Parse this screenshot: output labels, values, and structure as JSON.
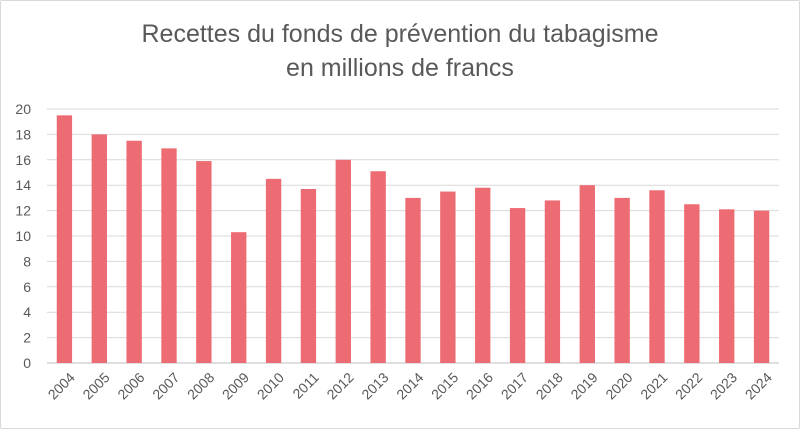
{
  "title_line1": "Recettes du fonds de prévention du tabagisme",
  "title_line2": "en millions de francs",
  "bar_color": "#ED6B72",
  "chart_data": {
    "type": "bar",
    "title": "Recettes du fonds de prévention du tabagisme en millions de francs",
    "categories": [
      "2004",
      "2005",
      "2006",
      "2007",
      "2008",
      "2009",
      "2010",
      "2011",
      "2012",
      "2013",
      "2014",
      "2015",
      "2016",
      "2017",
      "2018",
      "2019",
      "2020",
      "2021",
      "2022",
      "2023",
      "2024"
    ],
    "values": [
      19.5,
      18.0,
      17.5,
      16.9,
      15.9,
      10.3,
      14.5,
      13.7,
      16.0,
      15.1,
      13.0,
      13.5,
      13.8,
      12.2,
      12.8,
      14.0,
      13.0,
      13.6,
      12.5,
      12.1,
      12.0
    ],
    "ylim": [
      0,
      20
    ],
    "yticks": [
      "0",
      "2",
      "4",
      "6",
      "8",
      "10",
      "12",
      "14",
      "16",
      "18",
      "20"
    ],
    "grid": true,
    "legend": "none"
  }
}
